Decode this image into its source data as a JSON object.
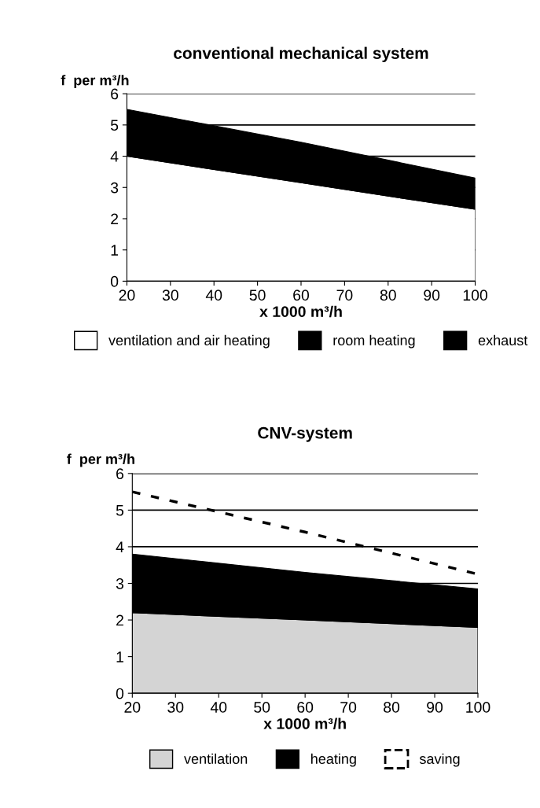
{
  "chart_data": [
    {
      "type": "area",
      "title": "conventional mechanical system",
      "xlabel": "x 1000 m³/h",
      "ylabel": "f  per m³/h",
      "stacked": true,
      "x": [
        20,
        60,
        100
      ],
      "xlim": [
        20,
        100
      ],
      "xticks": [
        20,
        30,
        40,
        50,
        60,
        70,
        80,
        90,
        100
      ],
      "ylim": [
        0,
        6
      ],
      "yticks": [
        0,
        1,
        2,
        3,
        4,
        5,
        6
      ],
      "grid": "y",
      "legend": "bottom",
      "series": [
        {
          "name": "ventilation and air heating",
          "color": "#ffffff",
          "values": [
            4.0,
            3.15,
            2.3
          ]
        },
        {
          "name": "room heating",
          "color": "#000000",
          "values": [
            1.5,
            1.3,
            1.0
          ]
        },
        {
          "name": "exhaust",
          "color": "#000000",
          "values": [
            null,
            null,
            null
          ]
        }
      ]
    },
    {
      "type": "area",
      "title": "CNV-system",
      "xlabel": "x 1000 m³/h",
      "ylabel": "f  per m³/h",
      "stacked": true,
      "x": [
        20,
        60,
        100
      ],
      "xlim": [
        20,
        100
      ],
      "xticks": [
        20,
        30,
        40,
        50,
        60,
        70,
        80,
        90,
        100
      ],
      "ylim": [
        0,
        6
      ],
      "yticks": [
        0,
        1,
        2,
        3,
        4,
        5,
        6
      ],
      "grid": "y",
      "legend": "bottom",
      "series": [
        {
          "name": "ventilation",
          "color": "#d4d4d4",
          "values": [
            2.2,
            2.0,
            1.8
          ]
        },
        {
          "name": "heating",
          "color": "#000000",
          "values": [
            1.6,
            1.3,
            1.05
          ]
        },
        {
          "name": "saving",
          "type": "line",
          "line_style": "dashed",
          "color": "#000000",
          "values": [
            5.5,
            4.4,
            3.25
          ]
        }
      ]
    }
  ]
}
